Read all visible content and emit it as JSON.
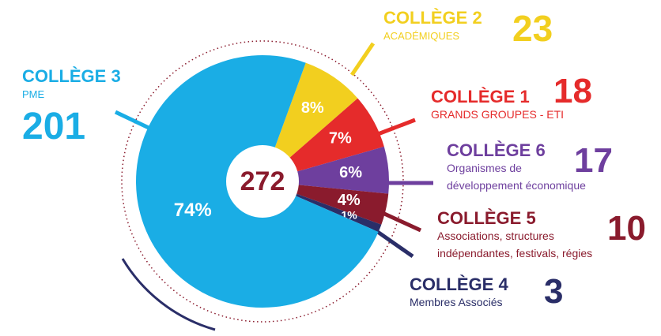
{
  "chart_data": {
    "type": "pie",
    "categories": [
      "COLLÈGE 2",
      "COLLÈGE 1",
      "COLLÈGE 6",
      "COLLÈGE 5",
      "COLLÈGE 4",
      "COLLÈGE 3"
    ],
    "subtitles": [
      [
        "ACADÉMIQUES"
      ],
      [
        "GRANDS GROUPES - ETI"
      ],
      [
        "Organismes de",
        "développement économique"
      ],
      [
        "Associations, structures",
        "indépendantes, festivals, régies"
      ],
      [
        "Membres Associés"
      ],
      [
        "PME"
      ]
    ],
    "counts": [
      23,
      18,
      17,
      10,
      3,
      201
    ],
    "values": [
      8,
      7,
      6,
      4,
      1,
      74
    ],
    "value_labels": [
      "8%",
      "7%",
      "6%",
      "4%",
      "1%",
      "74%"
    ],
    "colors": [
      "#f2cf1f",
      "#e52b2b",
      "#6e3f9e",
      "#8a1b2d",
      "#2a2e68",
      "#1aade5"
    ],
    "total": 272
  }
}
